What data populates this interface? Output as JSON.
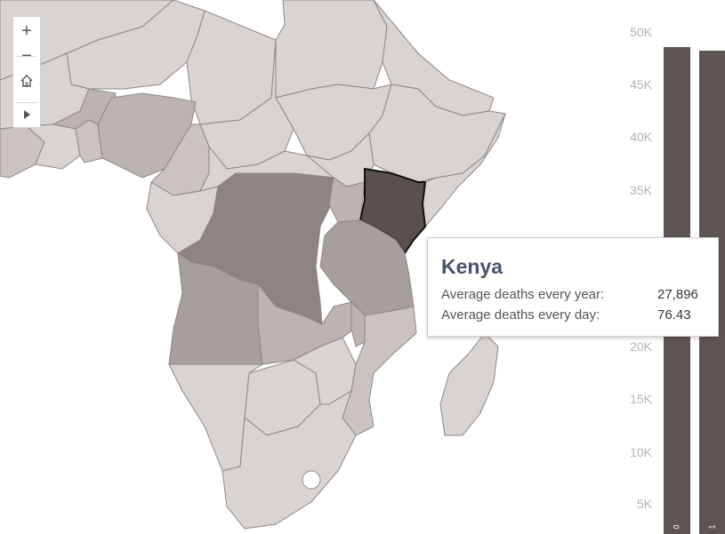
{
  "map": {
    "controls": {
      "zoom_in": "+",
      "zoom_out": "−",
      "home": "home-icon",
      "expand": "play-icon"
    },
    "selected_country": "Kenya",
    "fill_colors": {
      "lightest": "#d9d3d1",
      "light": "#cbc3c0",
      "medium": "#bdb3b0",
      "dark": "#a89e9b",
      "darker": "#8e8481",
      "selected": "#5a504d",
      "border": "#8c8886",
      "water": "#ffffff"
    }
  },
  "axis": {
    "ticks": [
      "50K",
      "45K",
      "40K",
      "35K",
      "20K",
      "15K",
      "10K",
      "5K"
    ]
  },
  "bars": {
    "color": "#5e5552",
    "labels": [
      "0",
      "1"
    ]
  },
  "tooltip": {
    "title": "Kenya",
    "rows": [
      {
        "label": "Average deaths every year:",
        "value": "27,896"
      },
      {
        "label": "Average deaths every day:",
        "value": "76.43"
      }
    ]
  }
}
